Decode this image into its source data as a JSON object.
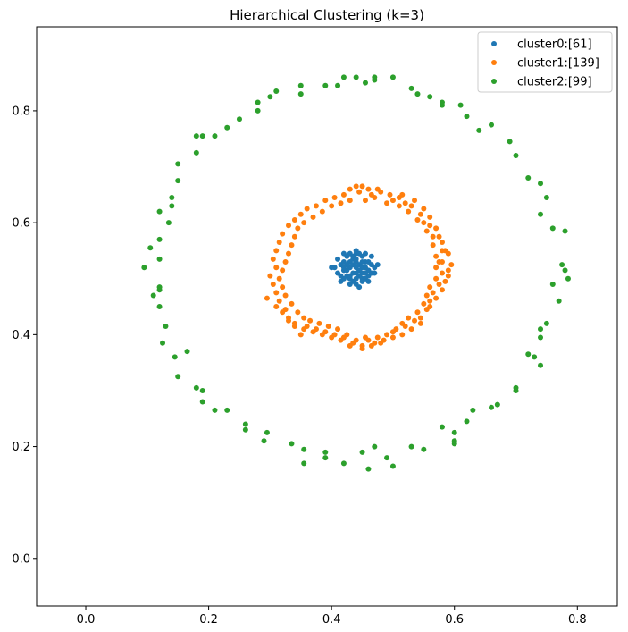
{
  "chart_data": {
    "type": "scatter",
    "title": "Hierarchical Clustering (k=3)",
    "xlabel": "",
    "ylabel": "",
    "xlim": [
      -0.08,
      0.865
    ],
    "ylim": [
      -0.085,
      0.95
    ],
    "xticks": [
      0.0,
      0.2,
      0.4,
      0.6,
      0.8
    ],
    "yticks": [
      0.0,
      0.2,
      0.4,
      0.6,
      0.8
    ],
    "xtick_labels": [
      "0.0",
      "0.2",
      "0.4",
      "0.6",
      "0.8"
    ],
    "ytick_labels": [
      "0.0",
      "0.2",
      "0.4",
      "0.6",
      "0.8"
    ],
    "grid": false,
    "legend_position": "top-right",
    "series": [
      {
        "name": "cluster0:[61]",
        "color": "#1f77b4",
        "points": [
          [
            0.44,
            0.52
          ],
          [
            0.43,
            0.53
          ],
          [
            0.45,
            0.51
          ],
          [
            0.42,
            0.515
          ],
          [
            0.435,
            0.535
          ],
          [
            0.445,
            0.525
          ],
          [
            0.425,
            0.505
          ],
          [
            0.455,
            0.53
          ],
          [
            0.43,
            0.5
          ],
          [
            0.44,
            0.545
          ],
          [
            0.45,
            0.5
          ],
          [
            0.415,
            0.525
          ],
          [
            0.46,
            0.515
          ],
          [
            0.435,
            0.51
          ],
          [
            0.44,
            0.49
          ],
          [
            0.425,
            0.54
          ],
          [
            0.455,
            0.545
          ],
          [
            0.41,
            0.51
          ],
          [
            0.465,
            0.525
          ],
          [
            0.43,
            0.52
          ],
          [
            0.445,
            0.505
          ],
          [
            0.42,
            0.5
          ],
          [
            0.45,
            0.54
          ],
          [
            0.435,
            0.495
          ],
          [
            0.46,
            0.505
          ],
          [
            0.405,
            0.52
          ],
          [
            0.47,
            0.52
          ],
          [
            0.43,
            0.545
          ],
          [
            0.44,
            0.53
          ],
          [
            0.45,
            0.52
          ],
          [
            0.42,
            0.53
          ],
          [
            0.455,
            0.51
          ],
          [
            0.445,
            0.485
          ],
          [
            0.415,
            0.495
          ],
          [
            0.465,
            0.54
          ],
          [
            0.4,
            0.52
          ],
          [
            0.475,
            0.525
          ],
          [
            0.44,
            0.55
          ],
          [
            0.435,
            0.525
          ],
          [
            0.425,
            0.515
          ],
          [
            0.45,
            0.495
          ],
          [
            0.46,
            0.53
          ],
          [
            0.43,
            0.505
          ],
          [
            0.445,
            0.515
          ],
          [
            0.41,
            0.535
          ],
          [
            0.47,
            0.51
          ],
          [
            0.455,
            0.5
          ],
          [
            0.42,
            0.545
          ],
          [
            0.44,
            0.51
          ],
          [
            0.435,
            0.54
          ],
          [
            0.45,
            0.53
          ],
          [
            0.425,
            0.525
          ],
          [
            0.46,
            0.495
          ],
          [
            0.415,
            0.505
          ],
          [
            0.44,
            0.535
          ],
          [
            0.445,
            0.545
          ],
          [
            0.43,
            0.49
          ],
          [
            0.455,
            0.52
          ],
          [
            0.42,
            0.52
          ],
          [
            0.465,
            0.51
          ],
          [
            0.44,
            0.5
          ]
        ]
      },
      {
        "name": "cluster1:[139]",
        "color": "#ff7f0e",
        "points": [
          [
            0.44,
            0.665
          ],
          [
            0.465,
            0.65
          ],
          [
            0.48,
            0.655
          ],
          [
            0.5,
            0.64
          ],
          [
            0.51,
            0.645
          ],
          [
            0.52,
            0.635
          ],
          [
            0.53,
            0.63
          ],
          [
            0.545,
            0.615
          ],
          [
            0.55,
            0.6
          ],
          [
            0.56,
            0.595
          ],
          [
            0.565,
            0.575
          ],
          [
            0.575,
            0.575
          ],
          [
            0.58,
            0.55
          ],
          [
            0.585,
            0.55
          ],
          [
            0.575,
            0.53
          ],
          [
            0.57,
            0.52
          ],
          [
            0.58,
            0.51
          ],
          [
            0.59,
            0.505
          ],
          [
            0.575,
            0.49
          ],
          [
            0.565,
            0.475
          ],
          [
            0.56,
            0.46
          ],
          [
            0.555,
            0.445
          ],
          [
            0.545,
            0.43
          ],
          [
            0.535,
            0.425
          ],
          [
            0.52,
            0.415
          ],
          [
            0.505,
            0.41
          ],
          [
            0.49,
            0.4
          ],
          [
            0.475,
            0.395
          ],
          [
            0.46,
            0.39
          ],
          [
            0.45,
            0.38
          ],
          [
            0.435,
            0.385
          ],
          [
            0.42,
            0.395
          ],
          [
            0.405,
            0.4
          ],
          [
            0.39,
            0.405
          ],
          [
            0.375,
            0.41
          ],
          [
            0.36,
            0.415
          ],
          [
            0.35,
            0.4
          ],
          [
            0.34,
            0.42
          ],
          [
            0.33,
            0.43
          ],
          [
            0.325,
            0.445
          ],
          [
            0.315,
            0.46
          ],
          [
            0.31,
            0.475
          ],
          [
            0.305,
            0.49
          ],
          [
            0.3,
            0.505
          ],
          [
            0.31,
            0.52
          ],
          [
            0.305,
            0.535
          ],
          [
            0.31,
            0.55
          ],
          [
            0.315,
            0.565
          ],
          [
            0.32,
            0.58
          ],
          [
            0.33,
            0.595
          ],
          [
            0.34,
            0.605
          ],
          [
            0.35,
            0.615
          ],
          [
            0.36,
            0.625
          ],
          [
            0.375,
            0.63
          ],
          [
            0.39,
            0.64
          ],
          [
            0.405,
            0.645
          ],
          [
            0.42,
            0.65
          ],
          [
            0.43,
            0.66
          ],
          [
            0.445,
            0.655
          ],
          [
            0.455,
            0.64
          ],
          [
            0.47,
            0.645
          ],
          [
            0.49,
            0.635
          ],
          [
            0.51,
            0.63
          ],
          [
            0.525,
            0.62
          ],
          [
            0.54,
            0.605
          ],
          [
            0.555,
            0.585
          ],
          [
            0.565,
            0.56
          ],
          [
            0.57,
            0.54
          ],
          [
            0.58,
            0.53
          ],
          [
            0.585,
            0.495
          ],
          [
            0.57,
            0.5
          ],
          [
            0.56,
            0.485
          ],
          [
            0.555,
            0.47
          ],
          [
            0.55,
            0.455
          ],
          [
            0.54,
            0.44
          ],
          [
            0.525,
            0.43
          ],
          [
            0.515,
            0.42
          ],
          [
            0.5,
            0.405
          ],
          [
            0.485,
            0.39
          ],
          [
            0.47,
            0.385
          ],
          [
            0.455,
            0.395
          ],
          [
            0.44,
            0.39
          ],
          [
            0.425,
            0.4
          ],
          [
            0.41,
            0.41
          ],
          [
            0.395,
            0.415
          ],
          [
            0.38,
            0.42
          ],
          [
            0.365,
            0.425
          ],
          [
            0.355,
            0.43
          ],
          [
            0.345,
            0.44
          ],
          [
            0.335,
            0.455
          ],
          [
            0.325,
            0.47
          ],
          [
            0.32,
            0.485
          ],
          [
            0.315,
            0.5
          ],
          [
            0.32,
            0.515
          ],
          [
            0.325,
            0.53
          ],
          [
            0.33,
            0.545
          ],
          [
            0.335,
            0.56
          ],
          [
            0.34,
            0.575
          ],
          [
            0.345,
            0.59
          ],
          [
            0.355,
            0.6
          ],
          [
            0.37,
            0.61
          ],
          [
            0.385,
            0.62
          ],
          [
            0.4,
            0.63
          ],
          [
            0.415,
            0.635
          ],
          [
            0.43,
            0.64
          ],
          [
            0.45,
            0.665
          ],
          [
            0.46,
            0.66
          ],
          [
            0.475,
            0.66
          ],
          [
            0.495,
            0.65
          ],
          [
            0.515,
            0.65
          ],
          [
            0.535,
            0.64
          ],
          [
            0.55,
            0.625
          ],
          [
            0.56,
            0.61
          ],
          [
            0.57,
            0.59
          ],
          [
            0.58,
            0.565
          ],
          [
            0.59,
            0.545
          ],
          [
            0.595,
            0.525
          ],
          [
            0.59,
            0.515
          ],
          [
            0.58,
            0.48
          ],
          [
            0.57,
            0.465
          ],
          [
            0.56,
            0.45
          ],
          [
            0.545,
            0.42
          ],
          [
            0.53,
            0.41
          ],
          [
            0.515,
            0.4
          ],
          [
            0.5,
            0.395
          ],
          [
            0.48,
            0.385
          ],
          [
            0.465,
            0.38
          ],
          [
            0.45,
            0.375
          ],
          [
            0.43,
            0.38
          ],
          [
            0.415,
            0.39
          ],
          [
            0.4,
            0.395
          ],
          [
            0.385,
            0.4
          ],
          [
            0.37,
            0.405
          ],
          [
            0.355,
            0.41
          ],
          [
            0.34,
            0.415
          ],
          [
            0.33,
            0.425
          ],
          [
            0.32,
            0.44
          ],
          [
            0.31,
            0.45
          ],
          [
            0.295,
            0.465
          ]
        ]
      },
      {
        "name": "cluster2:[99]",
        "color": "#2ca02c",
        "points": [
          [
            0.44,
            0.86
          ],
          [
            0.47,
            0.86
          ],
          [
            0.5,
            0.86
          ],
          [
            0.53,
            0.84
          ],
          [
            0.56,
            0.825
          ],
          [
            0.58,
            0.81
          ],
          [
            0.61,
            0.81
          ],
          [
            0.62,
            0.79
          ],
          [
            0.64,
            0.765
          ],
          [
            0.66,
            0.775
          ],
          [
            0.69,
            0.745
          ],
          [
            0.7,
            0.72
          ],
          [
            0.72,
            0.68
          ],
          [
            0.74,
            0.67
          ],
          [
            0.75,
            0.645
          ],
          [
            0.74,
            0.615
          ],
          [
            0.76,
            0.59
          ],
          [
            0.78,
            0.585
          ],
          [
            0.775,
            0.525
          ],
          [
            0.78,
            0.515
          ],
          [
            0.785,
            0.5
          ],
          [
            0.76,
            0.49
          ],
          [
            0.77,
            0.46
          ],
          [
            0.75,
            0.42
          ],
          [
            0.74,
            0.41
          ],
          [
            0.74,
            0.395
          ],
          [
            0.72,
            0.365
          ],
          [
            0.73,
            0.36
          ],
          [
            0.74,
            0.345
          ],
          [
            0.7,
            0.305
          ],
          [
            0.7,
            0.3
          ],
          [
            0.67,
            0.275
          ],
          [
            0.66,
            0.27
          ],
          [
            0.63,
            0.265
          ],
          [
            0.62,
            0.245
          ],
          [
            0.6,
            0.225
          ],
          [
            0.6,
            0.21
          ],
          [
            0.58,
            0.235
          ],
          [
            0.55,
            0.195
          ],
          [
            0.53,
            0.2
          ],
          [
            0.5,
            0.165
          ],
          [
            0.49,
            0.18
          ],
          [
            0.47,
            0.2
          ],
          [
            0.45,
            0.19
          ],
          [
            0.42,
            0.17
          ],
          [
            0.39,
            0.19
          ],
          [
            0.39,
            0.18
          ],
          [
            0.355,
            0.195
          ],
          [
            0.355,
            0.17
          ],
          [
            0.335,
            0.205
          ],
          [
            0.295,
            0.225
          ],
          [
            0.29,
            0.21
          ],
          [
            0.26,
            0.24
          ],
          [
            0.26,
            0.23
          ],
          [
            0.23,
            0.265
          ],
          [
            0.21,
            0.265
          ],
          [
            0.19,
            0.28
          ],
          [
            0.19,
            0.3
          ],
          [
            0.18,
            0.305
          ],
          [
            0.15,
            0.325
          ],
          [
            0.145,
            0.36
          ],
          [
            0.125,
            0.385
          ],
          [
            0.13,
            0.415
          ],
          [
            0.165,
            0.37
          ],
          [
            0.12,
            0.45
          ],
          [
            0.12,
            0.48
          ],
          [
            0.12,
            0.485
          ],
          [
            0.11,
            0.47
          ],
          [
            0.095,
            0.52
          ],
          [
            0.105,
            0.555
          ],
          [
            0.12,
            0.535
          ],
          [
            0.12,
            0.57
          ],
          [
            0.12,
            0.62
          ],
          [
            0.135,
            0.6
          ],
          [
            0.14,
            0.63
          ],
          [
            0.14,
            0.645
          ],
          [
            0.15,
            0.675
          ],
          [
            0.15,
            0.705
          ],
          [
            0.18,
            0.725
          ],
          [
            0.18,
            0.755
          ],
          [
            0.19,
            0.755
          ],
          [
            0.21,
            0.755
          ],
          [
            0.23,
            0.77
          ],
          [
            0.25,
            0.785
          ],
          [
            0.28,
            0.8
          ],
          [
            0.28,
            0.815
          ],
          [
            0.3,
            0.825
          ],
          [
            0.31,
            0.835
          ],
          [
            0.35,
            0.83
          ],
          [
            0.35,
            0.845
          ],
          [
            0.39,
            0.845
          ],
          [
            0.41,
            0.845
          ],
          [
            0.42,
            0.86
          ],
          [
            0.455,
            0.85
          ],
          [
            0.47,
            0.855
          ],
          [
            0.54,
            0.83
          ],
          [
            0.58,
            0.815
          ],
          [
            0.6,
            0.205
          ],
          [
            0.46,
            0.16
          ]
        ]
      }
    ]
  }
}
